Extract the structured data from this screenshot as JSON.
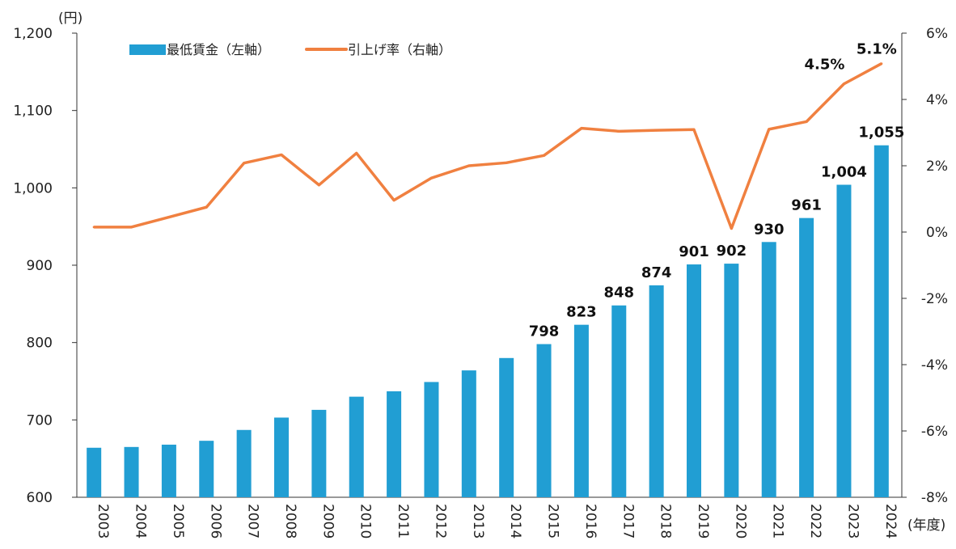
{
  "chart_data": {
    "type": "bar+line",
    "left_unit": "(円)",
    "x_unit": "(年度)",
    "categories": [
      "2003",
      "2004",
      "2005",
      "2006",
      "2007",
      "2008",
      "2009",
      "2010",
      "2011",
      "2012",
      "2013",
      "2014",
      "2015",
      "2016",
      "2017",
      "2018",
      "2019",
      "2020",
      "2021",
      "2022",
      "2023",
      "2024"
    ],
    "series": [
      {
        "name": "最低賃金（左軸）",
        "type": "bar",
        "axis": "left",
        "color": "#219ED3",
        "values": [
          664,
          665,
          668,
          673,
          687,
          703,
          713,
          730,
          737,
          749,
          764,
          780,
          798,
          823,
          848,
          874,
          901,
          902,
          930,
          961,
          1004,
          1055
        ]
      },
      {
        "name": "引上げ率（右軸）",
        "type": "line",
        "axis": "right",
        "color": "#F08040",
        "values": [
          0.15,
          0.15,
          0.45,
          0.75,
          2.08,
          2.33,
          1.42,
          2.38,
          0.96,
          1.63,
          2.0,
          2.09,
          2.31,
          3.13,
          3.04,
          3.07,
          3.09,
          0.11,
          3.1,
          3.33,
          4.47,
          5.08
        ]
      }
    ],
    "bar_labels": {
      "2015": "798",
      "2016": "823",
      "2017": "848",
      "2018": "874",
      "2019": "901",
      "2020": "902",
      "2021": "930",
      "2022": "961",
      "2023": "1,004",
      "2024": "1,055"
    },
    "line_labels": {
      "2023": "4.5%",
      "2024": "5.1%"
    },
    "left_axis": {
      "range": [
        600,
        1200
      ],
      "ticks": [
        "600",
        "700",
        "800",
        "900",
        "1,000",
        "1,100",
        "1,200"
      ]
    },
    "right_axis": {
      "range": [
        -8,
        6
      ],
      "ticks": [
        "-8%",
        "-6%",
        "-4%",
        "-2%",
        "0%",
        "2%",
        "4%",
        "6%"
      ]
    },
    "legend_position": "top",
    "grid": false
  }
}
